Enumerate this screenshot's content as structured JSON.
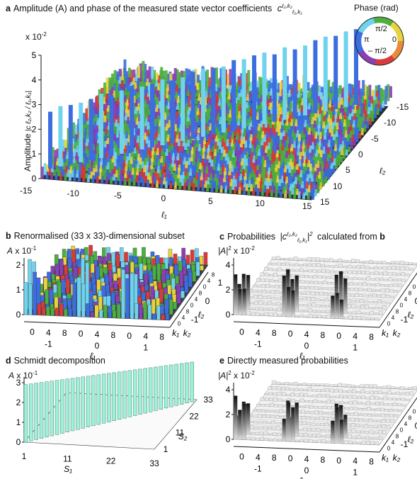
{
  "panel_a": {
    "letter": "a",
    "title": "Amplitude (A) and phase of the measured state vector coefficients",
    "coef_symbol": "c",
    "coef_super": "ℓ₂,k₂",
    "coef_sub": "ℓ₁,k₁",
    "y_scale": "x 10",
    "y_scale_exp": "-2",
    "y_label": "Amplitude",
    "y_label_symbol": "|c ℓ₂,k₂ / ℓ₁,k₁|",
    "y_ticks": [
      "0",
      "1",
      "2",
      "3",
      "4",
      "5"
    ],
    "x_ticks": [
      "-15",
      "-10",
      "-5",
      "0",
      "5",
      "10",
      "15"
    ],
    "x_label": "ℓ₁",
    "z_ticks": [
      "-15",
      "-10",
      "-5",
      "0",
      "5",
      "10",
      "15"
    ],
    "z_label": "ℓ₂",
    "legend": {
      "title": "Phase (rad)",
      "top": "π/2",
      "left": "π",
      "right": "0",
      "bottom": "– π/2"
    }
  },
  "panel_b": {
    "letter": "b",
    "title": "Renormalised (33 x 33)-dimensional subset",
    "y_symbol": "A",
    "y_scale": "x 10",
    "y_scale_exp": "-1",
    "y_ticks": [
      "0",
      "1",
      "2"
    ],
    "k_ticks": [
      "0",
      "4",
      "8",
      "0",
      "4",
      "8",
      "0",
      "4",
      "8"
    ],
    "l_ticks": [
      "-1",
      "0",
      "1"
    ],
    "x_label1": "ℓ₁",
    "x_label2": "k₁",
    "z_label1": "ℓ₂",
    "z_label2": "k₂",
    "z_l_ticks": [
      "-1",
      "0",
      "1"
    ],
    "z_k_ticks": [
      "0",
      "4",
      "8",
      "0",
      "4",
      "8",
      "0",
      "4",
      "8"
    ]
  },
  "panel_c": {
    "letter": "c",
    "title_pre": "Probabilities",
    "title_post": "calculated from",
    "title_ref": "b",
    "y_symbol": "|A|",
    "y_scale": "x 10",
    "y_scale_exp": "-2",
    "y_ticks": [
      "0",
      "2",
      "4"
    ],
    "k_ticks": [
      "0",
      "4",
      "8",
      "0",
      "4",
      "8",
      "0",
      "4",
      "8"
    ],
    "l_ticks": [
      "-1",
      "0",
      "1"
    ],
    "x_label1": "ℓ₁",
    "x_label2": "k₁",
    "z_label1": "ℓ₂",
    "z_label2": "k₂",
    "z_l_ticks": [
      "-1",
      "0",
      "1"
    ],
    "z_k_ticks": [
      "0",
      "4",
      "8",
      "0",
      "4",
      "8",
      "0",
      "4",
      "8"
    ]
  },
  "panel_d": {
    "letter": "d",
    "title": "Schmidt decomposition",
    "y_symbol": "A",
    "y_scale": "x 10",
    "y_scale_exp": "-1",
    "y_ticks": [
      "0",
      "1",
      "2",
      "3"
    ],
    "x_ticks": [
      "1",
      "11",
      "22",
      "33"
    ],
    "x_label": "S₁",
    "z_ticks": [
      "1",
      "11",
      "22",
      "33"
    ],
    "z_label": "S₂"
  },
  "panel_e": {
    "letter": "e",
    "title": "Directly measured probabilities",
    "y_symbol": "|A|",
    "y_scale": "x 10",
    "y_scale_exp": "-2",
    "y_ticks": [
      "0",
      "2",
      "4"
    ],
    "k_ticks": [
      "0",
      "4",
      "8",
      "0",
      "4",
      "8",
      "0",
      "4",
      "8"
    ],
    "l_ticks": [
      "-1",
      "0",
      "1"
    ],
    "x_label1": "ℓ₁",
    "x_label2": "k₁",
    "z_label1": "ℓ₂",
    "z_label2": "k₂",
    "z_l_ticks": [
      "-1",
      "0",
      "1"
    ],
    "z_k_ticks": [
      "0",
      "4",
      "8",
      "0",
      "4",
      "8",
      "0",
      "4",
      "8"
    ]
  },
  "colors": {
    "phase_cyan": "#6fd3ee",
    "phase_blue": "#3c6ee0",
    "phase_green": "#4caf3f",
    "phase_red": "#d93a3a",
    "phase_purple": "#8a3fb5",
    "phase_yellow": "#e8d43a",
    "schmidt_fill": "#9ff0d8",
    "prob_grey": "#8a8a8a"
  }
}
